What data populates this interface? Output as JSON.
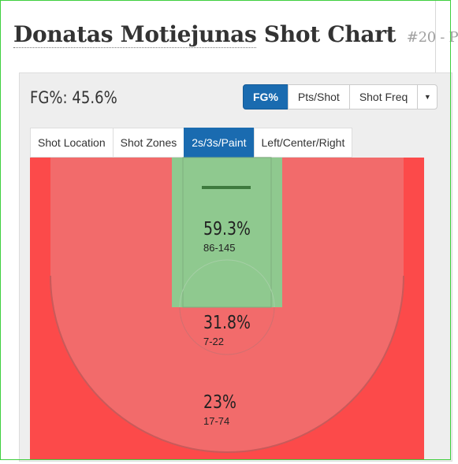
{
  "header": {
    "title_player": "Donatas Motiejunas",
    "title_rest": "Shot Chart",
    "title_suffix": "#20 - P"
  },
  "stat": {
    "label": "FG%: 45.6%"
  },
  "metric_buttons": [
    {
      "label": "FG%",
      "active": true
    },
    {
      "label": "Pts/Shot",
      "active": false
    },
    {
      "label": "Shot Freq",
      "active": false
    }
  ],
  "dropdown_icon": "caret-down-icon",
  "tabs": [
    {
      "label": "Shot Location",
      "active": false
    },
    {
      "label": "Shot Zones",
      "active": false
    },
    {
      "label": "2s/3s/Paint",
      "active": true
    },
    {
      "label": "Left/Center/Right",
      "active": false
    }
  ],
  "zones": {
    "paint": {
      "pct": "59.3%",
      "made_attempts": "86-145",
      "color": "#8fc98f"
    },
    "mid_range": {
      "pct": "31.8%",
      "made_attempts": "7-22",
      "color": "#f26b6b"
    },
    "three": {
      "pct": "23%",
      "made_attempts": "17-74",
      "color": "#fc4a4a"
    }
  }
}
